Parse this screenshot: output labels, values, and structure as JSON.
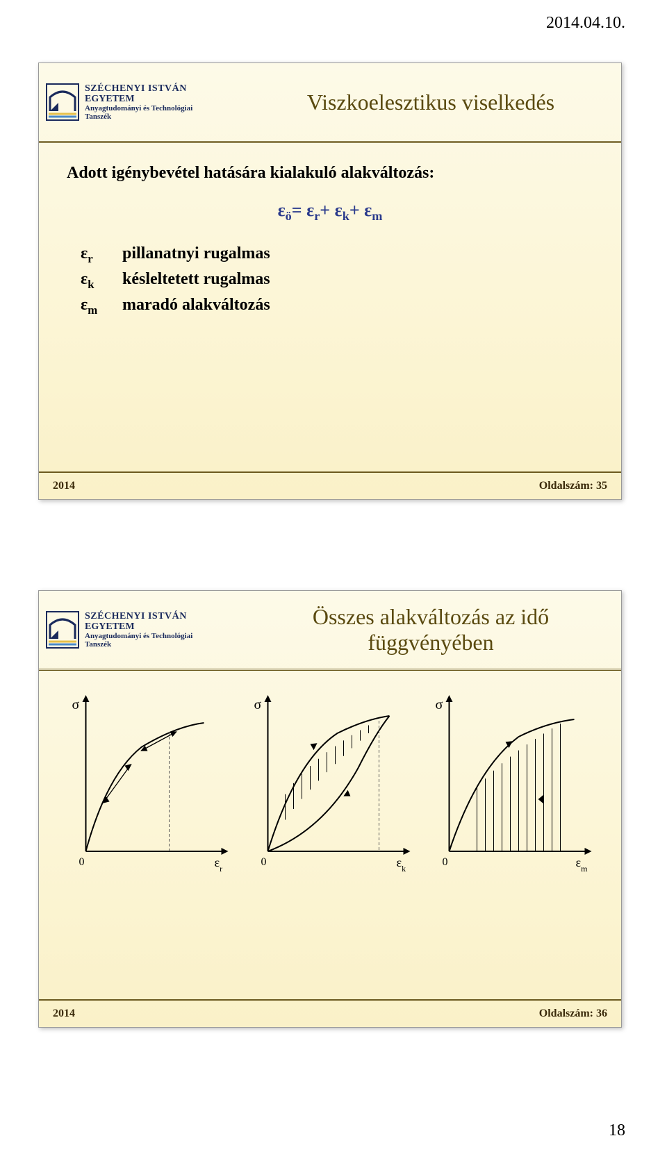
{
  "page": {
    "date": "2014.04.10.",
    "number": "18"
  },
  "university": {
    "line1": "SZÉCHENYI ISTVÁN",
    "line2": "EGYETEM",
    "line3": "Anyagtudományi és Technológiai",
    "line4": "Tanszék"
  },
  "slide1": {
    "title": "Viszkoelesztikus viselkedés",
    "intro": "Adott igénybevétel hatására kialakuló alakváltozás:",
    "formula_html": "ε<span class='sub'>ö</span>= ε<span class='sub'>r</span>+ ε<span class='sub'>k</span>+ ε<span class='sub'>m</span>",
    "defs": [
      {
        "sym": "ε<span class='sub'>r</span>",
        "text": "pillanatnyi rugalmas"
      },
      {
        "sym": "ε<span class='sub'>k</span>",
        "text": "késleltetett rugalmas"
      },
      {
        "sym": "ε<span class='sub'>m</span>",
        "text": "maradó alakváltozás"
      }
    ],
    "footer_year": "2014",
    "footer_page": "Oldalszám: 35"
  },
  "slide2": {
    "title": "Összes alakváltozás az idő függvényében",
    "charts": [
      {
        "ylabel": "σ",
        "xlabel_html": "ε<tspan baseline-shift='sub' font-size='12'>r</tspan>",
        "type": "elastic"
      },
      {
        "ylabel": "σ",
        "xlabel_html": "ε<tspan baseline-shift='sub' font-size='12'>k</tspan>",
        "type": "hysteresis"
      },
      {
        "ylabel": "σ",
        "xlabel_html": "ε<tspan baseline-shift='sub' font-size='12'>m</tspan>",
        "type": "creep"
      }
    ],
    "footer_year": "2014",
    "footer_page": "Oldalszám: 36",
    "axis_color": "#000000",
    "curve_color": "#000000",
    "dash_color": "#555555",
    "label_fontsize": 20,
    "origin_label": "0"
  },
  "colors": {
    "title_color": "#5a4a10",
    "formula_color": "#2a3a8c",
    "slide_bg_top": "#fdfae8",
    "slide_bg_bot": "#faf1c8",
    "uni_color": "#1a2a5c"
  }
}
